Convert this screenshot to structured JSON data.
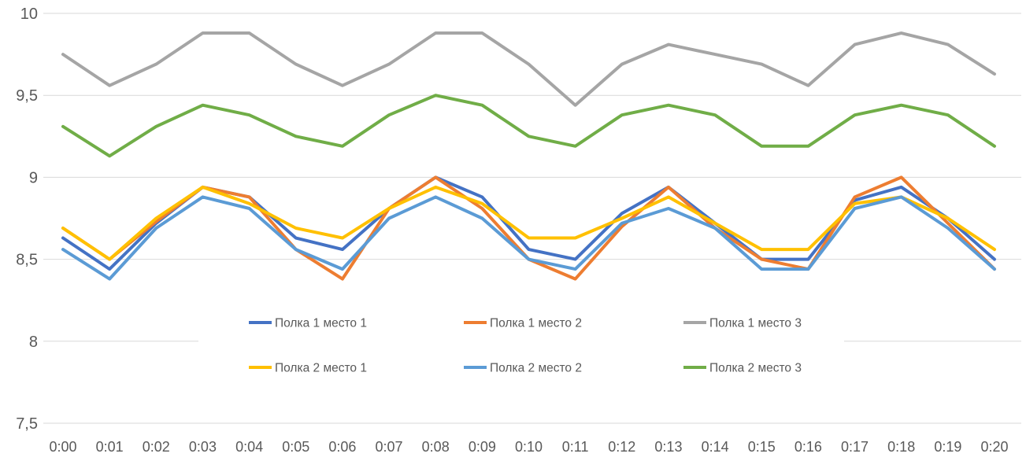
{
  "chart_data": {
    "type": "line",
    "title": "",
    "xlabel": "",
    "ylabel": "",
    "x_categories": [
      "0:00",
      "0:01",
      "0:02",
      "0:03",
      "0:04",
      "0:05",
      "0:06",
      "0:07",
      "0:08",
      "0:09",
      "0:10",
      "0:11",
      "0:12",
      "0:13",
      "0:14",
      "0:15",
      "0:16",
      "0:17",
      "0:18",
      "0:19",
      "0:20"
    ],
    "series": [
      {
        "name": "Полка 1 место 1",
        "color": "#4472C4",
        "values": [
          8.63,
          8.44,
          8.72,
          8.94,
          8.88,
          8.63,
          8.56,
          8.81,
          9.0,
          8.88,
          8.56,
          8.5,
          8.78,
          8.94,
          8.72,
          8.5,
          8.5,
          8.86,
          8.94,
          8.75,
          8.5
        ]
      },
      {
        "name": "Полка 1 место 2",
        "color": "#ED7D31",
        "values": [
          8.69,
          8.5,
          8.73,
          8.94,
          8.88,
          8.56,
          8.38,
          8.81,
          9.0,
          8.81,
          8.5,
          8.38,
          8.7,
          8.94,
          8.69,
          8.5,
          8.44,
          8.88,
          9.0,
          8.72,
          8.44
        ]
      },
      {
        "name": "Полка 1 место 3",
        "color": "#A5A5A5",
        "values": [
          9.75,
          9.56,
          9.69,
          9.88,
          9.88,
          9.69,
          9.56,
          9.69,
          9.88,
          9.88,
          9.69,
          9.44,
          9.69,
          9.81,
          9.75,
          9.69,
          9.56,
          9.81,
          9.88,
          9.81,
          9.63
        ]
      },
      {
        "name": "Полка 2  место 1",
        "color": "#FFC000",
        "values": [
          8.69,
          8.5,
          8.75,
          8.94,
          8.84,
          8.69,
          8.63,
          8.81,
          8.94,
          8.84,
          8.63,
          8.63,
          8.75,
          8.88,
          8.72,
          8.56,
          8.56,
          8.84,
          8.88,
          8.75,
          8.56
        ]
      },
      {
        "name": "Полка 2 место 2",
        "color": "#5B9BD5",
        "values": [
          8.56,
          8.38,
          8.69,
          8.88,
          8.81,
          8.56,
          8.44,
          8.75,
          8.88,
          8.75,
          8.5,
          8.44,
          8.72,
          8.81,
          8.69,
          8.44,
          8.44,
          8.81,
          8.88,
          8.69,
          8.44
        ]
      },
      {
        "name": "Полка 2 место 3",
        "color": "#70AD47",
        "values": [
          9.31,
          9.13,
          9.31,
          9.44,
          9.38,
          9.25,
          9.19,
          9.38,
          9.5,
          9.44,
          9.25,
          9.19,
          9.38,
          9.44,
          9.38,
          9.19,
          9.19,
          9.38,
          9.44,
          9.38,
          9.19
        ]
      }
    ],
    "y_axis": {
      "min": 7.5,
      "max": 10,
      "step": 0.5,
      "tick_labels": [
        "10",
        "9,5",
        "9",
        "8,5",
        "8",
        "7,5"
      ],
      "decimal_separator": ","
    },
    "grid": true,
    "gridline_color": "#D9D9D9",
    "axis_text_color": "#595959",
    "legend_position": "inside-bottom-center-two-rows",
    "legend_rows": [
      [
        "Полка 1 место 1",
        "Полка 1 место 2",
        "Полка 1 место 3"
      ],
      [
        "Полка 2  место 1",
        "Полка 2 место 2",
        "Полка 2 место 3"
      ]
    ]
  }
}
